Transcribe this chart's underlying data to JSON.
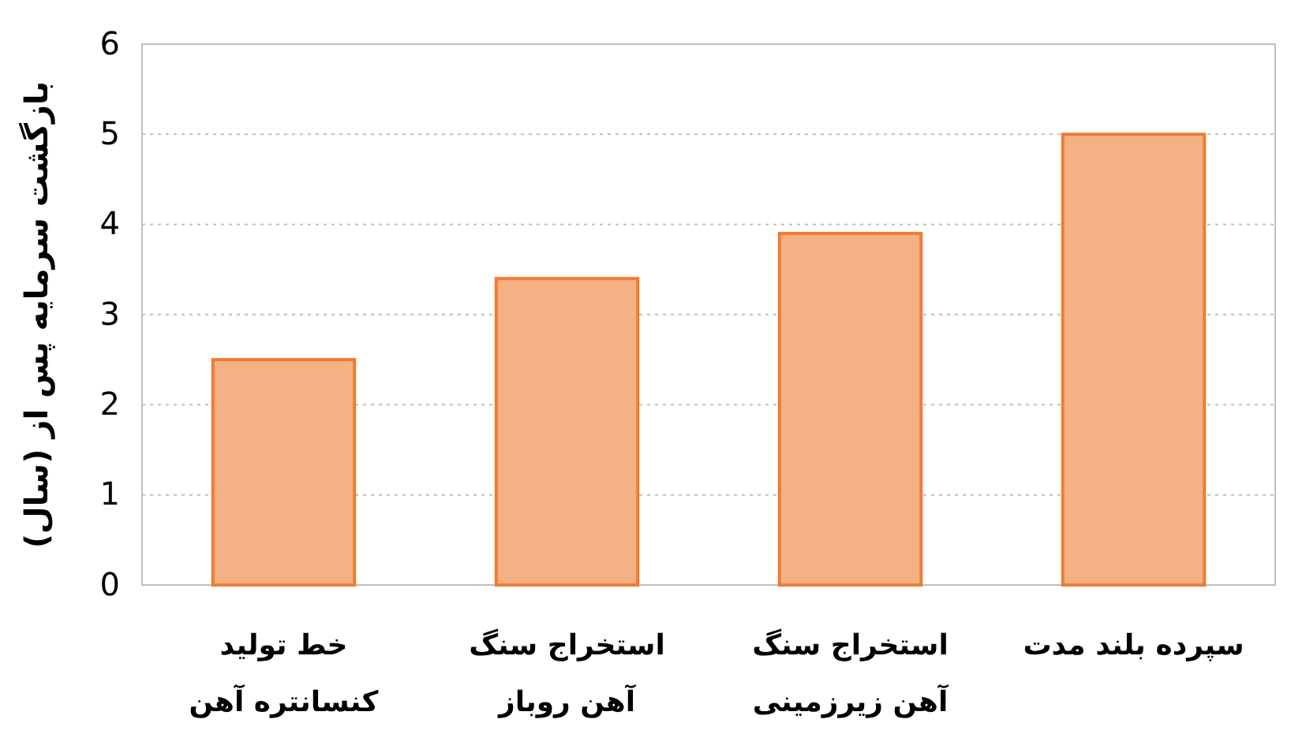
{
  "chart_data": {
    "type": "bar",
    "ylabel": "بازگشت سرمایه پس از (سال)",
    "categories": [
      "خط تولید کنسانتره آهن",
      "استخراج سنگ آهن روباز",
      "استخراج سنگ آهن زیرزمینی",
      "سپرده بلند مدت"
    ],
    "values": [
      2.5,
      3.4,
      3.9,
      5.0
    ],
    "color": "#f4b183",
    "ylim": [
      0,
      6
    ],
    "yticks": [
      0,
      1,
      2,
      3,
      4,
      5,
      6
    ],
    "grid": "y"
  }
}
